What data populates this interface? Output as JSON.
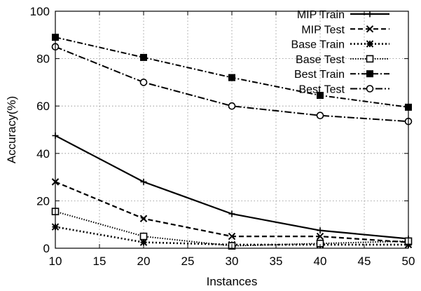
{
  "chart_data": {
    "type": "line",
    "xlabel": "Instances",
    "ylabel": "Accuracy(%)",
    "xlim": [
      10,
      50
    ],
    "ylim": [
      0,
      100
    ],
    "xticks": [
      10,
      15,
      20,
      25,
      30,
      35,
      40,
      45,
      50
    ],
    "yticks": [
      0,
      20,
      40,
      60,
      80,
      100
    ],
    "grid": true,
    "legend_position": "top-right",
    "x": [
      10,
      20,
      30,
      40,
      50
    ],
    "series": [
      {
        "name": "MIP Train",
        "values": [
          47.5,
          28.0,
          14.5,
          7.5,
          4.0
        ],
        "marker": "plus",
        "dash": "solid"
      },
      {
        "name": "MIP Test",
        "values": [
          28.0,
          12.5,
          5.0,
          5.0,
          2.5
        ],
        "marker": "x",
        "dash": "dashed"
      },
      {
        "name": "Base Train",
        "values": [
          9.0,
          2.5,
          1.5,
          1.5,
          1.5
        ],
        "marker": "star",
        "dash": "dotted"
      },
      {
        "name": "Base Test",
        "values": [
          15.5,
          5.0,
          1.0,
          2.0,
          3.0
        ],
        "marker": "square-open",
        "dash": "dotted-dense"
      },
      {
        "name": "Best Train",
        "values": [
          89.0,
          80.5,
          72.0,
          64.5,
          59.5
        ],
        "marker": "square-filled",
        "dash": "dashdot"
      },
      {
        "name": "Best Test",
        "values": [
          85.0,
          70.0,
          60.0,
          56.0,
          53.5
        ],
        "marker": "circle-open",
        "dash": "dashdot-long"
      }
    ]
  }
}
